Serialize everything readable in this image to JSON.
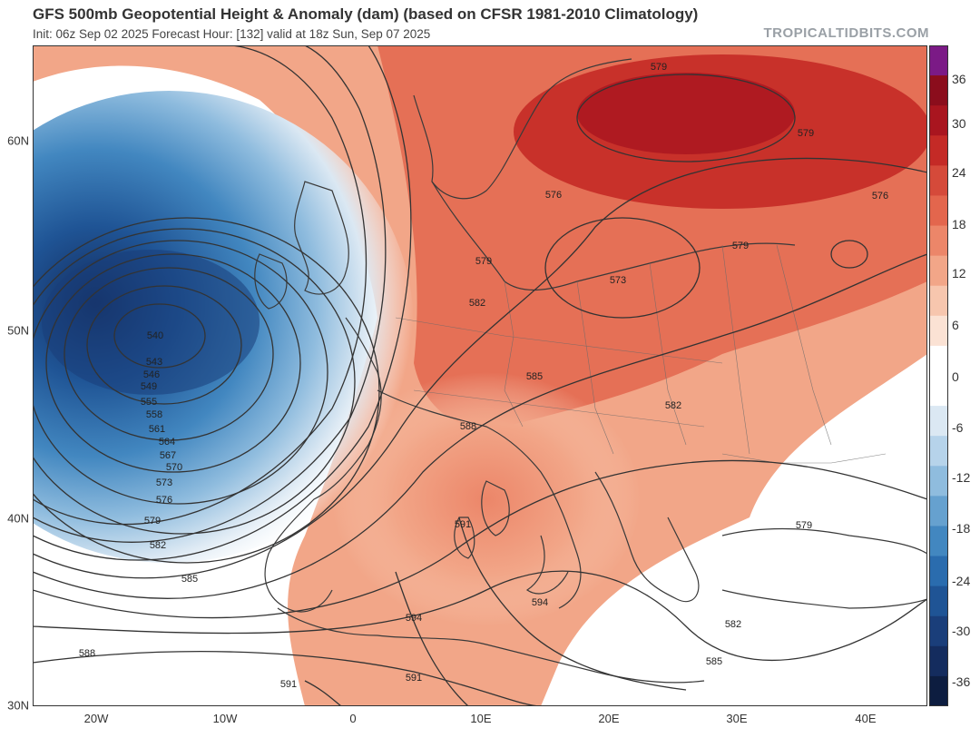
{
  "header": {
    "title": "GFS 500mb Geopotential Height & Anomaly (dam) (based on CFSR 1981-2010 Climatology)",
    "subtitle": "Init: 06z Sep 02 2025   Forecast Hour: [132]   valid at 18z Sun, Sep 07 2025",
    "brand": "TROPICALTIDBITS.COM"
  },
  "axes": {
    "lat_labels": [
      "60N",
      "50N",
      "40N",
      "30N"
    ],
    "lon_labels": [
      "20W",
      "10W",
      "0",
      "10E",
      "20E",
      "30E",
      "40E"
    ]
  },
  "colorbar": {
    "labels": [
      "36",
      "30",
      "24",
      "18",
      "12",
      "6",
      "0",
      "-6",
      "-12",
      "-18",
      "-24",
      "-30",
      "-36"
    ],
    "colors": [
      "#7b1a86",
      "#8b0d1c",
      "#a9151f",
      "#c42a26",
      "#d54a3a",
      "#e3664d",
      "#ec8669",
      "#f2a688",
      "#f7c6ae",
      "#fbe2d4",
      "#ffffff",
      "#ffffff",
      "#dbe8f3",
      "#b6d3ea",
      "#8fbcde",
      "#66a1cf",
      "#4287c0",
      "#2a6cae",
      "#1f5495",
      "#1a3e7a",
      "#142c5e",
      "#0d1d40"
    ]
  },
  "contours": {
    "labels": [
      "540",
      "543",
      "546",
      "549",
      "555",
      "558",
      "561",
      "564",
      "567",
      "570",
      "573",
      "576",
      "579",
      "582",
      "585",
      "588",
      "591",
      "594",
      "579",
      "579",
      "576",
      "576",
      "579",
      "579",
      "573",
      "582",
      "585",
      "588",
      "582",
      "591",
      "579",
      "582",
      "585",
      "594",
      "591"
    ]
  },
  "colors": {
    "trough": "#2a6cae",
    "ridge": "#c42a26",
    "contour_line": "#333333",
    "border": "#3a3a3a"
  }
}
